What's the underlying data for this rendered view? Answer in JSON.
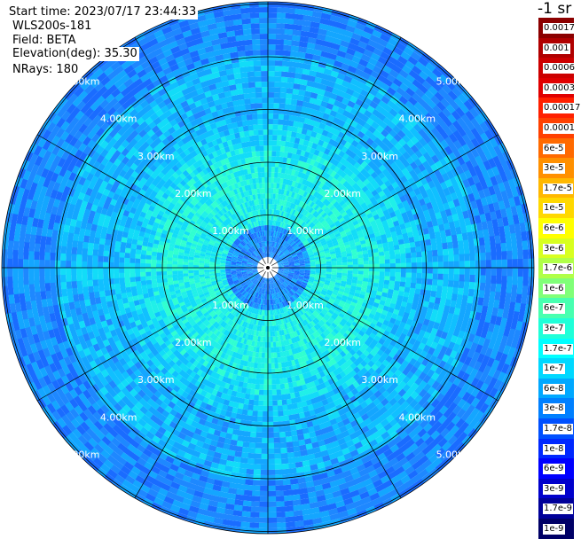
{
  "info": {
    "start_time": "Start time: 2023/07/17 23:44:33",
    "instrument": "WLS200s-181",
    "field": "Field: BETA",
    "elevation": "Elevation(deg): 35.30",
    "nrays": "NRays: 180"
  },
  "range_labels": [
    "1.00km",
    "2.00km",
    "3.00km",
    "4.00km",
    "5.00km"
  ],
  "colorbar": {
    "title": "-1 sr",
    "labels": [
      "0.0017",
      "0.001",
      "0.0006",
      "0.0003",
      "0.00017",
      "0.0001",
      "6e-5",
      "3e-5",
      "1.7e-5",
      "1e-5",
      "6e-6",
      "3e-6",
      "1.7e-6",
      "1e-6",
      "6e-7",
      "3e-7",
      "1.7e-7",
      "1e-7",
      "6e-8",
      "3e-8",
      "1.7e-8",
      "1e-8",
      "6e-9",
      "3e-9",
      "1.7e-9",
      "1e-9"
    ],
    "colors": [
      "#8b0000",
      "#b00000",
      "#cc0000",
      "#e00000",
      "#ff2000",
      "#ff4000",
      "#ff6a00",
      "#ff9000",
      "#ffb800",
      "#ffd800",
      "#ffff00",
      "#d8ff20",
      "#b0ff48",
      "#80ff78",
      "#48ffb0",
      "#20ffd8",
      "#00ffff",
      "#00d8ff",
      "#00a8ff",
      "#0080ff",
      "#0050ff",
      "#0028ff",
      "#0000ff",
      "#0000cc",
      "#000099",
      "#000066"
    ]
  }
}
